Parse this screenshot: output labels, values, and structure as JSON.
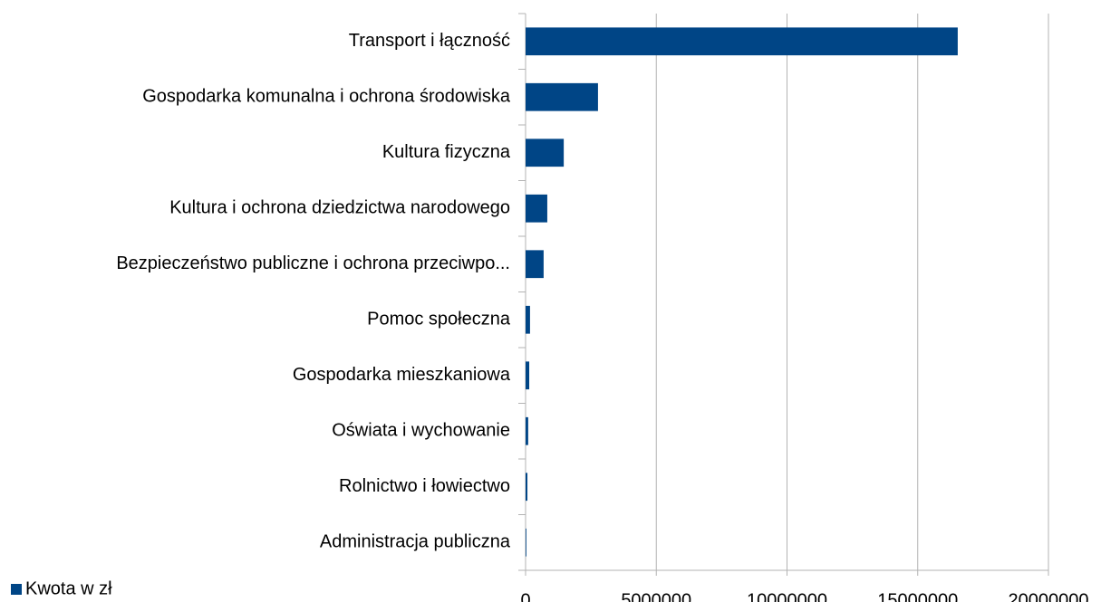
{
  "chart_data": {
    "type": "bar",
    "orientation": "horizontal",
    "categories": [
      "Transport i łączność",
      "Gospodarka komunalna i ochrona środowiska",
      "Kultura fizyczna",
      "Kultura i ochrona dziedzictwa narodowego",
      "Bezpieczeństwo publiczne i ochrona przeciwpo...",
      "Pomoc społeczna",
      "Gospodarka mieszkaniowa",
      "Oświata i wychowanie",
      "Rolnictwo i łowiectwo",
      "Administracja publiczna"
    ],
    "series": [
      {
        "name": "Kwota w zł",
        "color": "#004586",
        "values": [
          16530000,
          2770000,
          1460000,
          830000,
          690000,
          170000,
          140000,
          100000,
          70000,
          30000
        ]
      }
    ],
    "xlim": [
      0,
      20000000
    ],
    "xticks": [
      0,
      5000000,
      10000000,
      15000000,
      20000000
    ],
    "grid": true,
    "legend": "bottom-left"
  }
}
